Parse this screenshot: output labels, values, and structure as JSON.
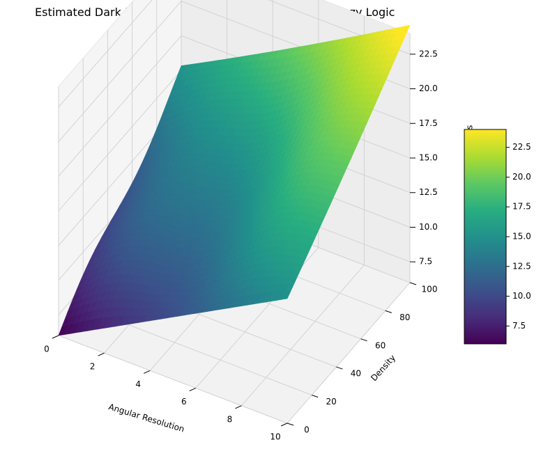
{
  "chart_data": {
    "type": "surface",
    "title": "Estimated Dark Matter Particle Mass Inference using Fuzzy Logic",
    "xlabel": "Angular Resolution",
    "ylabel": "Density",
    "zlabel": "Estimated Mass",
    "x_ticks": [
      0,
      2,
      4,
      6,
      8,
      10
    ],
    "y_ticks": [
      0,
      20,
      40,
      60,
      80,
      100
    ],
    "z_ticks": [
      7.5,
      10.0,
      12.5,
      15.0,
      17.5,
      20.0,
      22.5
    ],
    "colorbar_ticks": [
      7.5,
      10.0,
      12.5,
      15.0,
      17.5,
      20.0,
      22.5
    ],
    "xlim": [
      0,
      10
    ],
    "ylim": [
      0,
      100
    ],
    "zlim": [
      6,
      24
    ],
    "grid": true,
    "colormap": "viridis",
    "colorbar_placement": "right",
    "surface_corners": {
      "x0_y0": 6.0,
      "x10_y0": 15.0,
      "x0_y100": 15.0,
      "x10_y100": 24.0
    },
    "sample_points": [
      {
        "x": 0,
        "y": 0,
        "z": 6.0
      },
      {
        "x": 0,
        "y": 50,
        "z": 10.5
      },
      {
        "x": 0,
        "y": 100,
        "z": 15.0
      },
      {
        "x": 5,
        "y": 0,
        "z": 11.0
      },
      {
        "x": 5,
        "y": 50,
        "z": 15.0
      },
      {
        "x": 5,
        "y": 100,
        "z": 19.0
      },
      {
        "x": 10,
        "y": 0,
        "z": 15.0
      },
      {
        "x": 10,
        "y": 50,
        "z": 19.0
      },
      {
        "x": 10,
        "y": 100,
        "z": 24.0
      }
    ]
  }
}
